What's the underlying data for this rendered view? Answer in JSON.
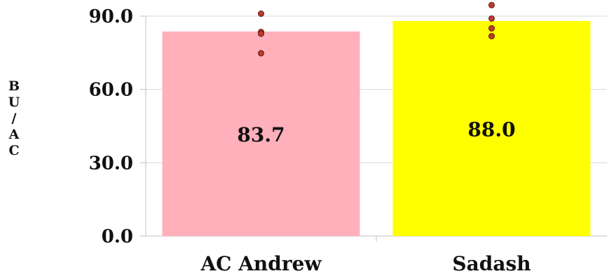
{
  "chart_data": {
    "type": "bar",
    "categories": [
      "AC Andrew",
      "Sadash"
    ],
    "values": [
      83.7,
      88.0
    ],
    "data_labels": [
      "83.7",
      "88.0"
    ],
    "bar_colors": [
      "#ffb0bb",
      "#ffff00"
    ],
    "points": [
      [
        91.0,
        83.5,
        82.8,
        74.8
      ],
      [
        94.5,
        89.0,
        85.0,
        81.8
      ]
    ],
    "point_color": "#c0392b",
    "ylabel": "BU/AC",
    "ylim": [
      0,
      90
    ],
    "yticks": [
      0,
      30,
      60,
      90
    ],
    "ytick_labels": [
      "0.0",
      "30.0",
      "60.0",
      "90.0"
    ],
    "grid": true,
    "legend": "none"
  }
}
